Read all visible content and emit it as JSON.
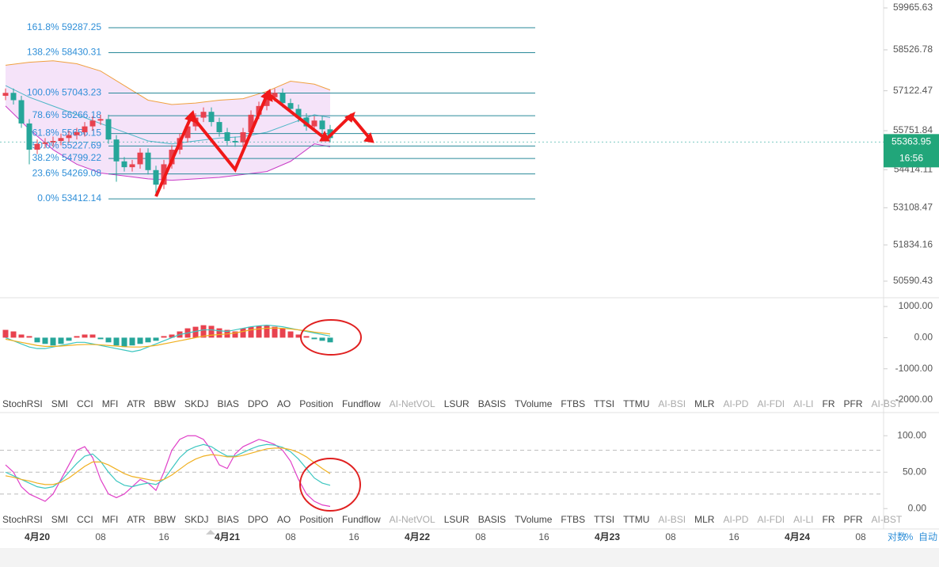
{
  "price_axis": {
    "ticks": [
      59965.63,
      58526.78,
      57122.47,
      55751.84,
      54414.11,
      53108.47,
      51834.16,
      50590.43
    ],
    "ylim": [
      50047,
      60237
    ],
    "last_price": 55363.95,
    "countdown": "16:56"
  },
  "candles": {
    "open": [
      56950,
      57050,
      56800,
      56000,
      55100,
      55300,
      55350,
      55400,
      55500,
      55600,
      55700,
      55900,
      56100,
      56150,
      55450,
      54700,
      54500,
      54600,
      55000,
      54400,
      53900,
      54600,
      55100,
      55500,
      55900,
      56200,
      56400,
      56050,
      55700,
      55400,
      55350,
      55700,
      56300,
      56600,
      56900,
      57050,
      56700,
      56500,
      56200,
      55900,
      56100,
      55800
    ],
    "high": [
      57200,
      57200,
      56950,
      56150,
      55450,
      55500,
      55550,
      55650,
      55750,
      55850,
      56050,
      56250,
      56300,
      56300,
      55600,
      54850,
      54750,
      55150,
      55150,
      54550,
      54750,
      55250,
      55650,
      56050,
      56350,
      56550,
      56550,
      56200,
      55850,
      55550,
      55850,
      56450,
      56750,
      57050,
      57200,
      57200,
      56850,
      56650,
      56350,
      56250,
      56250,
      55950
    ],
    "low": [
      56800,
      56650,
      55850,
      54600,
      54950,
      55150,
      55200,
      55250,
      55350,
      55450,
      55550,
      55750,
      55950,
      55300,
      54000,
      54350,
      54350,
      54450,
      54250,
      53500,
      53750,
      54450,
      54950,
      55350,
      55750,
      56050,
      55900,
      55550,
      55250,
      55200,
      55200,
      55550,
      56150,
      56450,
      56750,
      56550,
      56350,
      56050,
      55750,
      55750,
      55650,
      55350
    ],
    "close": [
      57050,
      56800,
      56000,
      55100,
      55300,
      55350,
      55400,
      55500,
      55600,
      55700,
      55900,
      56100,
      56150,
      55450,
      54700,
      54500,
      54600,
      55000,
      54400,
      53900,
      54600,
      55100,
      55500,
      55900,
      56200,
      56400,
      56050,
      55700,
      55400,
      55350,
      55700,
      56300,
      56600,
      56900,
      57050,
      56700,
      56500,
      56200,
      55900,
      56100,
      55800,
      55500
    ]
  },
  "bollinger": {
    "index": [
      0,
      3,
      6,
      9,
      12,
      15,
      18,
      21,
      24,
      27,
      30,
      33,
      36,
      39,
      41
    ],
    "upper": [
      58000,
      58100,
      58150,
      58050,
      57800,
      57300,
      56800,
      56650,
      56700,
      56800,
      56850,
      57100,
      57450,
      57350,
      57150
    ],
    "middle": [
      57300,
      56900,
      56600,
      56300,
      56000,
      55700,
      55400,
      55300,
      55400,
      55500,
      55550,
      55700,
      56000,
      56300,
      56200
    ],
    "lower": [
      56600,
      55800,
      55100,
      54600,
      54300,
      54200,
      54100,
      54050,
      54100,
      54150,
      54250,
      54350,
      54700,
      55300,
      55200
    ]
  },
  "fib_levels": [
    {
      "pct": "161.8%",
      "price": 59287.25
    },
    {
      "pct": "138.2%",
      "price": 58430.31
    },
    {
      "pct": "100.0%",
      "price": 57043.23
    },
    {
      "pct": "78.6%",
      "price": 56266.18
    },
    {
      "pct": "61.8%",
      "price": 55656.15
    },
    {
      "pct": "50.0%",
      "price": 55227.69
    },
    {
      "pct": "38.2%",
      "price": 54799.22
    },
    {
      "pct": "23.6%",
      "price": 54269.08
    },
    {
      "pct": "0.0%",
      "price": 53412.14
    }
  ],
  "oscillator_1": {
    "ylim": [
      -2100,
      1230
    ],
    "ticks": [
      {
        "value": 1000,
        "label": "1000.00"
      },
      {
        "value": 0,
        "label": "0.00"
      },
      {
        "value": -1000,
        "label": "-1000.00"
      },
      {
        "value": -2000,
        "label": "-2000.00"
      }
    ],
    "histogram": [
      250,
      200,
      100,
      50,
      -150,
      -200,
      -250,
      -200,
      -100,
      50,
      100,
      100,
      -50,
      -150,
      -250,
      -300,
      -250,
      -200,
      -150,
      -100,
      50,
      100,
      200,
      300,
      350,
      400,
      380,
      300,
      250,
      200,
      300,
      350,
      380,
      400,
      350,
      300,
      200,
      100,
      50,
      -50,
      -100,
      -150
    ],
    "line_a": [
      0,
      -100,
      -200,
      -300,
      -350,
      -350,
      -300,
      -250,
      -200,
      -150,
      -150,
      -200,
      -250,
      -300,
      -350,
      -400,
      -450,
      -400,
      -300,
      -200,
      -100,
      0,
      100,
      150,
      200,
      250,
      250,
      220,
      200,
      250,
      300,
      350,
      380,
      400,
      380,
      350,
      300,
      250,
      200,
      150,
      100,
      50
    ],
    "line_b": [
      -50,
      -100,
      -150,
      -200,
      -250,
      -280,
      -280,
      -270,
      -250,
      -230,
      -220,
      -220,
      -230,
      -250,
      -270,
      -290,
      -300,
      -300,
      -280,
      -250,
      -200,
      -150,
      -100,
      -50,
      0,
      50,
      80,
      100,
      120,
      150,
      200,
      250,
      280,
      300,
      310,
      300,
      280,
      250,
      220,
      180,
      150,
      120
    ]
  },
  "oscillator_2": {
    "ylim": [
      -28,
      122
    ],
    "ticks": [
      {
        "value": 100,
        "label": "100.00"
      },
      {
        "value": 50,
        "label": "50.00"
      },
      {
        "value": 0,
        "label": "0.00"
      }
    ],
    "dashed": [
      80,
      50,
      20
    ],
    "k": [
      60,
      50,
      30,
      20,
      15,
      10,
      20,
      40,
      60,
      80,
      85,
      70,
      40,
      20,
      15,
      20,
      30,
      40,
      35,
      25,
      50,
      80,
      95,
      100,
      100,
      95,
      80,
      60,
      55,
      75,
      85,
      90,
      95,
      92,
      88,
      80,
      65,
      40,
      20,
      10,
      5,
      3
    ],
    "d": [
      50,
      45,
      40,
      35,
      30,
      28,
      30,
      38,
      50,
      62,
      72,
      75,
      65,
      50,
      38,
      32,
      30,
      33,
      35,
      33,
      40,
      55,
      70,
      80,
      85,
      88,
      85,
      78,
      72,
      72,
      77,
      82,
      86,
      88,
      87,
      84,
      78,
      68,
      55,
      42,
      35,
      32
    ],
    "j": [
      45,
      43,
      40,
      38,
      35,
      33,
      33,
      36,
      42,
      50,
      58,
      64,
      64,
      60,
      54,
      48,
      44,
      42,
      40,
      38,
      40,
      46,
      54,
      62,
      68,
      72,
      74,
      73,
      71,
      71,
      73,
      76,
      79,
      82,
      83,
      83,
      81,
      77,
      71,
      63,
      55,
      48
    ]
  },
  "indicator_tabs": {
    "items": [
      "StochRSI",
      "SMI",
      "CCI",
      "MFI",
      "ATR",
      "BBW",
      "SKDJ",
      "BIAS",
      "DPO",
      "AO",
      "Position",
      "Fundflow",
      "AI-NetVOL",
      "LSUR",
      "BASIS",
      "TVolume",
      "FTBS",
      "TTSI",
      "TTMU",
      "AI-BSI",
      "MLR",
      "AI-PD",
      "AI-FDI",
      "AI-LI",
      "FR",
      "PFR",
      "AI-BST"
    ],
    "muted": [
      12,
      19,
      21,
      22,
      23,
      26
    ]
  },
  "time_axis": {
    "labels": [
      "4月20",
      "08",
      "16",
      "4月21",
      "08",
      "16",
      "4月22",
      "08",
      "16",
      "4月23",
      "08",
      "16",
      "4月24",
      "08"
    ],
    "dates": [
      0,
      3,
      6,
      9,
      12
    ]
  },
  "axis_options": [
    "对数",
    "%",
    "自动"
  ]
}
